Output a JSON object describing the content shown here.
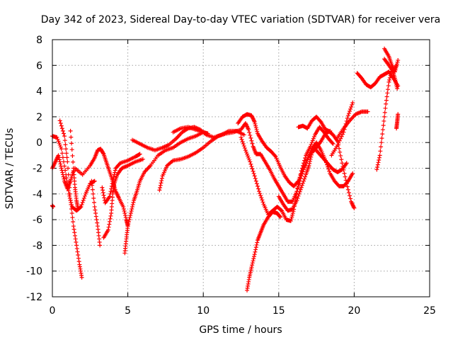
{
  "chart_data": {
    "type": "scatter",
    "title": "Day 342 of 2023, Sidereal Day-to-day VTEC variation (SDTVAR) for receiver vera",
    "xlabel": "GPS time / hours",
    "ylabel": "SDTVAR / TECUs",
    "xlim": [
      0,
      25
    ],
    "ylim": [
      -12,
      8
    ],
    "xticks": [
      0,
      5,
      10,
      15,
      20,
      25
    ],
    "yticks": [
      -12,
      -10,
      -8,
      -6,
      -4,
      -2,
      0,
      2,
      4,
      6,
      8
    ],
    "grid": true,
    "marker": "+",
    "color": "#ff0000",
    "series": [
      {
        "name": "s1",
        "points": [
          [
            0.0,
            -4.9
          ],
          [
            0.05,
            -5.0
          ]
        ]
      },
      {
        "name": "s2",
        "points": [
          [
            0.0,
            0.5
          ],
          [
            0.3,
            0.4
          ],
          [
            0.6,
            -0.5
          ],
          [
            0.9,
            -2.5
          ],
          [
            1.1,
            -4.0
          ],
          [
            1.3,
            -5.0
          ],
          [
            1.6,
            -5.3
          ],
          [
            1.9,
            -5.0
          ],
          [
            2.2,
            -4.0
          ],
          [
            2.5,
            -3.2
          ],
          [
            2.8,
            -3.0
          ]
        ]
      },
      {
        "name": "s3",
        "points": [
          [
            0.0,
            -2.0
          ],
          [
            0.2,
            -1.5
          ],
          [
            0.4,
            -1.0
          ],
          [
            0.6,
            -2.0
          ],
          [
            0.8,
            -3.0
          ],
          [
            1.0,
            -3.6
          ],
          [
            1.2,
            -3.0
          ],
          [
            1.4,
            -2.2
          ]
        ]
      },
      {
        "name": "s4",
        "points": [
          [
            0.5,
            1.7
          ],
          [
            0.8,
            0.5
          ],
          [
            1.0,
            -1.5
          ],
          [
            1.2,
            -4.5
          ],
          [
            1.4,
            -6.5
          ],
          [
            1.6,
            -8.0
          ],
          [
            1.8,
            -9.5
          ],
          [
            1.95,
            -10.5
          ]
        ]
      },
      {
        "name": "s5",
        "points": [
          [
            1.2,
            0.9
          ],
          [
            1.4,
            -2.0
          ],
          [
            1.5,
            -3.5
          ],
          [
            1.6,
            -4.5
          ],
          [
            1.7,
            -5.2
          ]
        ]
      },
      {
        "name": "s6",
        "points": [
          [
            1.5,
            -2.0
          ],
          [
            2.0,
            -2.5
          ],
          [
            2.5,
            -1.8
          ],
          [
            2.8,
            -1.2
          ],
          [
            3.0,
            -0.6
          ],
          [
            3.2,
            -0.5
          ],
          [
            3.4,
            -0.9
          ],
          [
            3.6,
            -1.6
          ],
          [
            3.8,
            -2.3
          ],
          [
            4.0,
            -3.0
          ],
          [
            4.2,
            -3.8
          ],
          [
            4.4,
            -4.3
          ],
          [
            4.7,
            -5.0
          ],
          [
            4.9,
            -6.0
          ],
          [
            5.0,
            -6.5
          ]
        ]
      },
      {
        "name": "s7",
        "points": [
          [
            2.6,
            -3.0
          ],
          [
            2.8,
            -5.0
          ],
          [
            3.0,
            -6.5
          ],
          [
            3.15,
            -8.0
          ]
        ]
      },
      {
        "name": "s8",
        "points": [
          [
            3.3,
            -3.5
          ],
          [
            3.5,
            -4.7
          ],
          [
            3.8,
            -4.2
          ],
          [
            4.0,
            -3.0
          ],
          [
            4.2,
            -2.0
          ],
          [
            4.5,
            -1.6
          ],
          [
            5.0,
            -1.4
          ],
          [
            5.5,
            -1.1
          ],
          [
            5.8,
            -0.9
          ]
        ]
      },
      {
        "name": "s9",
        "points": [
          [
            3.4,
            -7.4
          ],
          [
            3.7,
            -6.8
          ],
          [
            3.9,
            -5.5
          ],
          [
            4.0,
            -4.0
          ],
          [
            4.1,
            -3.2
          ],
          [
            4.3,
            -2.5
          ],
          [
            4.6,
            -2.0
          ],
          [
            5.0,
            -1.8
          ],
          [
            5.5,
            -1.5
          ],
          [
            6.0,
            -1.3
          ]
        ]
      },
      {
        "name": "s10",
        "points": [
          [
            4.8,
            -8.6
          ],
          [
            4.9,
            -7.5
          ],
          [
            5.0,
            -6.5
          ],
          [
            5.2,
            -5.5
          ],
          [
            5.4,
            -4.5
          ],
          [
            5.6,
            -3.8
          ],
          [
            5.8,
            -3.0
          ],
          [
            6.1,
            -2.3
          ],
          [
            6.5,
            -1.8
          ],
          [
            7.0,
            -1.0
          ],
          [
            7.5,
            -0.6
          ],
          [
            8.0,
            -0.4
          ],
          [
            8.5,
            0.0
          ],
          [
            9.0,
            0.3
          ],
          [
            9.5,
            0.5
          ],
          [
            10.0,
            0.8
          ]
        ]
      },
      {
        "name": "s11",
        "points": [
          [
            5.3,
            0.2
          ],
          [
            5.8,
            -0.1
          ],
          [
            6.3,
            -0.4
          ],
          [
            6.8,
            -0.6
          ],
          [
            7.3,
            -0.4
          ],
          [
            7.7,
            -0.2
          ],
          [
            8.2,
            0.3
          ],
          [
            8.6,
            0.8
          ],
          [
            9.0,
            1.1
          ],
          [
            9.4,
            1.2
          ],
          [
            9.8,
            1.0
          ],
          [
            10.2,
            0.6
          ],
          [
            10.7,
            0.4
          ],
          [
            11.2,
            0.6
          ],
          [
            11.7,
            0.9
          ],
          [
            12.2,
            0.9
          ],
          [
            12.7,
            0.6
          ]
        ]
      },
      {
        "name": "s12",
        "points": [
          [
            7.1,
            -3.7
          ],
          [
            7.3,
            -2.6
          ],
          [
            7.6,
            -1.8
          ],
          [
            8.0,
            -1.4
          ],
          [
            8.5,
            -1.3
          ],
          [
            9.0,
            -1.1
          ],
          [
            9.5,
            -0.8
          ],
          [
            10.0,
            -0.4
          ],
          [
            10.5,
            0.1
          ],
          [
            11.0,
            0.5
          ],
          [
            11.5,
            0.7
          ],
          [
            12.0,
            0.8
          ],
          [
            12.5,
            1.0
          ],
          [
            12.8,
            1.5
          ],
          [
            13.0,
            1.0
          ],
          [
            13.3,
            -0.3
          ],
          [
            13.5,
            -0.9
          ],
          [
            13.8,
            -0.9
          ],
          [
            14.1,
            -1.5
          ],
          [
            14.4,
            -2.1
          ],
          [
            14.7,
            -2.8
          ],
          [
            15.0,
            -3.4
          ],
          [
            15.3,
            -4.0
          ],
          [
            15.6,
            -4.6
          ],
          [
            15.9,
            -4.6
          ],
          [
            16.2,
            -3.8
          ],
          [
            16.5,
            -2.6
          ],
          [
            16.8,
            -1.6
          ],
          [
            17.1,
            -0.8
          ],
          [
            17.4,
            -0.5
          ],
          [
            17.7,
            -0.9
          ],
          [
            18.0,
            -1.3
          ],
          [
            18.3,
            -1.7
          ],
          [
            18.6,
            -2.1
          ],
          [
            18.9,
            -2.3
          ],
          [
            19.2,
            -2.1
          ],
          [
            19.5,
            -1.6
          ]
        ]
      },
      {
        "name": "s13",
        "points": [
          [
            8.0,
            0.8
          ],
          [
            8.5,
            1.1
          ],
          [
            9.0,
            1.2
          ],
          [
            9.5,
            1.0
          ],
          [
            10.0,
            0.8
          ],
          [
            10.3,
            0.7
          ]
        ]
      },
      {
        "name": "s14",
        "points": [
          [
            12.3,
            1.5
          ],
          [
            12.6,
            2.0
          ],
          [
            12.9,
            2.2
          ],
          [
            13.2,
            2.1
          ],
          [
            13.4,
            1.6
          ],
          [
            13.6,
            0.7
          ],
          [
            13.9,
            0.1
          ],
          [
            14.2,
            -0.4
          ],
          [
            14.5,
            -0.7
          ],
          [
            14.8,
            -1.1
          ],
          [
            15.1,
            -1.9
          ],
          [
            15.4,
            -2.6
          ],
          [
            15.7,
            -3.1
          ],
          [
            16.0,
            -3.4
          ],
          [
            16.3,
            -3.0
          ],
          [
            16.6,
            -2.1
          ],
          [
            16.9,
            -1.3
          ],
          [
            17.2,
            -0.5
          ],
          [
            17.5,
            0.0
          ],
          [
            17.8,
            -0.6
          ],
          [
            18.1,
            -1.4
          ],
          [
            18.4,
            -2.4
          ],
          [
            18.7,
            -3.0
          ],
          [
            19.0,
            -3.4
          ],
          [
            19.3,
            -3.4
          ],
          [
            19.6,
            -3.0
          ],
          [
            19.9,
            -2.4
          ]
        ]
      },
      {
        "name": "s15",
        "points": [
          [
            12.5,
            0.4
          ],
          [
            12.8,
            -0.6
          ],
          [
            13.1,
            -1.5
          ],
          [
            13.4,
            -2.6
          ],
          [
            13.7,
            -3.8
          ],
          [
            14.0,
            -4.8
          ],
          [
            14.3,
            -5.6
          ],
          [
            14.6,
            -5.3
          ],
          [
            14.9,
            -5.0
          ],
          [
            15.2,
            -5.3
          ],
          [
            15.5,
            -6.0
          ],
          [
            15.8,
            -6.1
          ],
          [
            16.0,
            -5.2
          ],
          [
            16.2,
            -3.8
          ],
          [
            16.5,
            -2.2
          ],
          [
            16.8,
            -1.0
          ],
          [
            17.1,
            -0.3
          ],
          [
            17.4,
            0.6
          ],
          [
            17.7,
            1.2
          ],
          [
            18.0,
            0.8
          ],
          [
            18.3,
            0.3
          ],
          [
            18.6,
            -0.1
          ]
        ]
      },
      {
        "name": "s16",
        "points": [
          [
            12.9,
            -11.5
          ],
          [
            13.05,
            -10.5
          ],
          [
            13.2,
            -9.7
          ],
          [
            13.4,
            -8.7
          ],
          [
            13.6,
            -7.6
          ],
          [
            13.8,
            -7.0
          ],
          [
            14.0,
            -6.4
          ],
          [
            14.3,
            -5.8
          ],
          [
            14.6,
            -5.4
          ],
          [
            14.9,
            -5.5
          ],
          [
            15.1,
            -5.8
          ]
        ]
      },
      {
        "name": "s17",
        "points": [
          [
            15.0,
            -4.2
          ],
          [
            15.3,
            -4.8
          ],
          [
            15.6,
            -5.3
          ],
          [
            15.9,
            -5.2
          ],
          [
            16.2,
            -4.5
          ],
          [
            16.5,
            -3.5
          ],
          [
            16.8,
            -2.5
          ],
          [
            17.0,
            -1.8
          ],
          [
            17.2,
            -0.8
          ],
          [
            17.5,
            -0.4
          ],
          [
            17.8,
            0.1
          ],
          [
            18.1,
            0.7
          ],
          [
            18.4,
            0.9
          ]
        ]
      },
      {
        "name": "s18",
        "points": [
          [
            16.3,
            1.2
          ],
          [
            16.6,
            1.3
          ],
          [
            16.9,
            1.1
          ],
          [
            17.2,
            1.7
          ],
          [
            17.5,
            2.0
          ],
          [
            17.8,
            1.6
          ],
          [
            18.1,
            1.0
          ],
          [
            18.3,
            0.9
          ],
          [
            18.6,
            0.6
          ],
          [
            18.9,
            0.1
          ],
          [
            19.2,
            -1.6
          ],
          [
            19.5,
            -3.2
          ],
          [
            19.8,
            -4.6
          ],
          [
            20.0,
            -5.1
          ]
        ]
      },
      {
        "name": "s19",
        "points": [
          [
            18.5,
            -1.0
          ],
          [
            18.9,
            -0.2
          ],
          [
            19.3,
            0.8
          ],
          [
            19.6,
            2.1
          ],
          [
            19.9,
            3.1
          ]
        ]
      },
      {
        "name": "s20",
        "points": [
          [
            18.9,
            0.4
          ],
          [
            19.3,
            1.1
          ],
          [
            19.7,
            1.7
          ],
          [
            20.1,
            2.2
          ],
          [
            20.5,
            2.4
          ],
          [
            20.9,
            2.4
          ]
        ]
      },
      {
        "name": "s21",
        "points": [
          [
            20.2,
            5.4
          ],
          [
            20.5,
            5.0
          ],
          [
            20.8,
            4.5
          ],
          [
            21.1,
            4.3
          ],
          [
            21.4,
            4.6
          ],
          [
            21.7,
            5.1
          ],
          [
            22.0,
            5.3
          ],
          [
            22.3,
            5.5
          ],
          [
            22.6,
            5.0
          ],
          [
            22.9,
            4.4
          ]
        ]
      },
      {
        "name": "s22",
        "points": [
          [
            21.5,
            -2.1
          ],
          [
            21.7,
            -1.0
          ],
          [
            21.9,
            1.0
          ],
          [
            22.1,
            3.0
          ],
          [
            22.3,
            4.7
          ],
          [
            22.5,
            5.7
          ],
          [
            22.7,
            5.0
          ],
          [
            22.85,
            4.2
          ]
        ]
      },
      {
        "name": "s23",
        "points": [
          [
            22.0,
            7.3
          ],
          [
            22.3,
            6.7
          ],
          [
            22.5,
            6.0
          ],
          [
            22.7,
            5.5
          ],
          [
            22.9,
            6.4
          ]
        ]
      },
      {
        "name": "s24",
        "points": [
          [
            22.0,
            6.5
          ],
          [
            22.3,
            6.0
          ],
          [
            22.6,
            5.5
          ],
          [
            22.8,
            6.0
          ]
        ]
      },
      {
        "name": "s25",
        "points": [
          [
            22.8,
            1.1
          ],
          [
            22.85,
            1.6
          ],
          [
            22.9,
            2.2
          ]
        ]
      }
    ]
  }
}
